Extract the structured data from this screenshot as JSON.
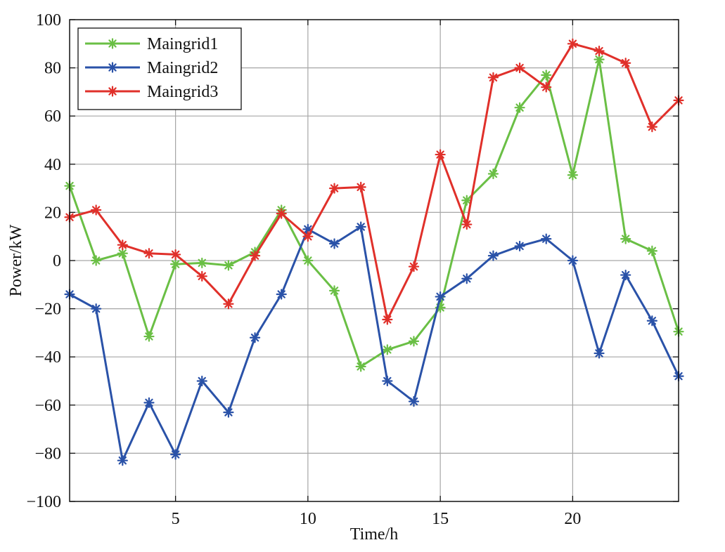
{
  "chart_data": {
    "type": "line",
    "xlabel": "Time/h",
    "ylabel": "Power/kW",
    "xlim": [
      1,
      24
    ],
    "ylim": [
      -100,
      100
    ],
    "xticks": [
      5,
      10,
      15,
      20
    ],
    "yticks": [
      -100,
      -80,
      -60,
      -40,
      -20,
      0,
      20,
      40,
      60,
      80,
      100
    ],
    "grid": true,
    "legend_position": "top-left",
    "marker": "asterisk",
    "x": [
      1,
      2,
      3,
      4,
      5,
      6,
      7,
      8,
      9,
      10,
      11,
      12,
      13,
      14,
      15,
      16,
      17,
      18,
      19,
      20,
      21,
      22,
      23,
      24
    ],
    "series": [
      {
        "name": "Maingrid1",
        "color": "#6abf45",
        "values": [
          31,
          0,
          3,
          -31.5,
          -1.5,
          -1,
          -2,
          3.5,
          21,
          0,
          -12.5,
          -44,
          -37,
          -33.5,
          -19.5,
          25,
          36,
          63.5,
          77,
          35.5,
          83.5,
          9,
          4,
          -29.5
        ]
      },
      {
        "name": "Maingrid2",
        "color": "#2a52a8",
        "values": [
          -14,
          -20,
          -83,
          -59,
          -80.5,
          -50,
          -63,
          -32,
          -14,
          13,
          7,
          14,
          -50,
          -58.5,
          -15,
          -7.5,
          2,
          6,
          9,
          0,
          -38.5,
          -6,
          -25,
          -48
        ]
      },
      {
        "name": "Maingrid3",
        "color": "#e0302a",
        "values": [
          18,
          21,
          6.5,
          3,
          2.5,
          -6.5,
          -18,
          2,
          19.5,
          10,
          30,
          30.5,
          -24.5,
          -2.5,
          44,
          15,
          76,
          80,
          72,
          90,
          87,
          82,
          55.5,
          66.5
        ]
      }
    ]
  }
}
